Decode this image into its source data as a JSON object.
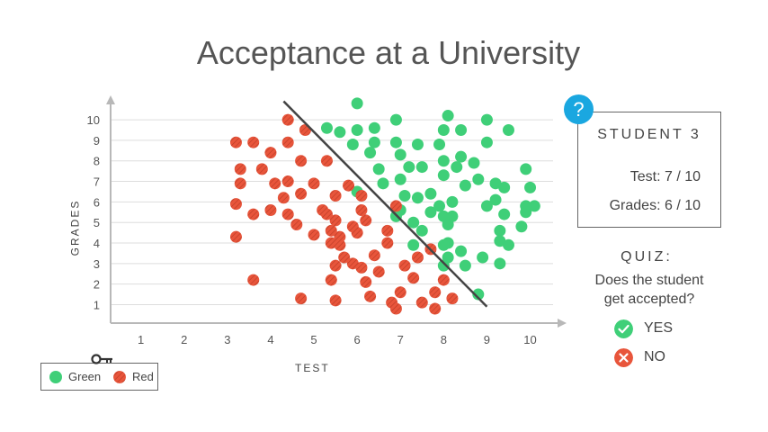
{
  "page": {
    "title": "Acceptance at a University"
  },
  "legend": {
    "green_label": "Green",
    "red_label": "Red",
    "key_icon": "key-icon"
  },
  "card": {
    "badge": "?",
    "heading": "STUDENT 3",
    "test_line": "Test: 7 / 10",
    "grades_line": "Grades: 6 / 10"
  },
  "quiz": {
    "title": "QUIZ:",
    "question_line1": "Does the student",
    "question_line2": "get accepted?",
    "yes_label": "YES",
    "no_label": "NO",
    "yes_icon": "check-icon",
    "no_icon": "x-icon"
  },
  "colors": {
    "green": "#3fcf78",
    "red": "#e8553b",
    "boundary": "#444444",
    "grid": "#dddddd",
    "axis": "#b8b8b8",
    "badge": "#1aa7e0"
  },
  "chart_data": {
    "type": "scatter",
    "title": "Acceptance at a University",
    "xlabel": "TEST",
    "ylabel": "GRADES",
    "xlim": [
      0.3,
      10.8
    ],
    "ylim": [
      0.1,
      11.1
    ],
    "xticks": [
      1,
      2,
      3,
      4,
      5,
      6,
      7,
      8,
      9,
      10
    ],
    "yticks": [
      1,
      2,
      3,
      4,
      5,
      6,
      7,
      8,
      9,
      10
    ],
    "grid": "horizontal",
    "legend": "bottom-left",
    "boundary_line": {
      "x": [
        4.3,
        9.0
      ],
      "y": [
        10.9,
        0.9
      ]
    },
    "series": [
      {
        "name": "Green",
        "points": [
          [
            6.0,
            10.8
          ],
          [
            5.3,
            9.6
          ],
          [
            5.6,
            9.4
          ],
          [
            5.9,
            8.8
          ],
          [
            6.0,
            9.5
          ],
          [
            6.4,
            9.6
          ],
          [
            6.4,
            8.9
          ],
          [
            6.3,
            8.4
          ],
          [
            6.9,
            10.0
          ],
          [
            6.9,
            8.9
          ],
          [
            7.0,
            8.3
          ],
          [
            7.4,
            8.8
          ],
          [
            6.5,
            7.6
          ],
          [
            6.6,
            6.9
          ],
          [
            7.2,
            7.7
          ],
          [
            7.5,
            7.7
          ],
          [
            7.0,
            7.1
          ],
          [
            8.1,
            10.2
          ],
          [
            8.0,
            9.5
          ],
          [
            7.9,
            8.8
          ],
          [
            8.4,
            9.5
          ],
          [
            8.4,
            8.2
          ],
          [
            8.3,
            7.7
          ],
          [
            8.0,
            8.0
          ],
          [
            8.0,
            7.3
          ],
          [
            8.7,
            7.9
          ],
          [
            9.0,
            10.0
          ],
          [
            9.0,
            8.9
          ],
          [
            9.5,
            9.5
          ],
          [
            8.5,
            6.8
          ],
          [
            8.8,
            7.1
          ],
          [
            9.2,
            6.9
          ],
          [
            9.4,
            6.7
          ],
          [
            9.9,
            7.6
          ],
          [
            10.0,
            6.7
          ],
          [
            9.9,
            5.8
          ],
          [
            10.1,
            5.8
          ],
          [
            9.2,
            6.1
          ],
          [
            9.0,
            5.8
          ],
          [
            9.4,
            5.4
          ],
          [
            9.9,
            5.5
          ],
          [
            9.8,
            4.8
          ],
          [
            9.3,
            4.6
          ],
          [
            9.3,
            4.1
          ],
          [
            9.5,
            3.9
          ],
          [
            9.3,
            3.0
          ],
          [
            8.9,
            3.3
          ],
          [
            8.4,
            3.6
          ],
          [
            8.5,
            2.9
          ],
          [
            8.8,
            1.5
          ],
          [
            7.1,
            6.3
          ],
          [
            7.4,
            6.2
          ],
          [
            7.7,
            6.4
          ],
          [
            7.7,
            5.5
          ],
          [
            8.2,
            5.3
          ],
          [
            7.9,
            5.8
          ],
          [
            8.2,
            6.0
          ],
          [
            7.0,
            5.6
          ],
          [
            7.3,
            5.0
          ],
          [
            7.5,
            4.6
          ],
          [
            8.0,
            5.3
          ],
          [
            8.1,
            4.9
          ],
          [
            8.1,
            4.0
          ],
          [
            8.0,
            3.9
          ],
          [
            6.0,
            6.5
          ],
          [
            6.9,
            5.3
          ],
          [
            7.3,
            3.9
          ],
          [
            8.1,
            3.3
          ],
          [
            8.0,
            2.9
          ]
        ]
      },
      {
        "name": "Red",
        "points": [
          [
            3.2,
            8.9
          ],
          [
            3.6,
            8.9
          ],
          [
            3.3,
            7.6
          ],
          [
            3.3,
            6.9
          ],
          [
            4.0,
            8.4
          ],
          [
            4.4,
            10.0
          ],
          [
            4.8,
            9.5
          ],
          [
            4.4,
            8.9
          ],
          [
            4.7,
            8.0
          ],
          [
            5.3,
            8.0
          ],
          [
            3.8,
            7.6
          ],
          [
            4.1,
            6.9
          ],
          [
            4.4,
            7.0
          ],
          [
            4.7,
            6.4
          ],
          [
            5.0,
            6.9
          ],
          [
            4.3,
            6.2
          ],
          [
            3.2,
            5.9
          ],
          [
            3.6,
            5.4
          ],
          [
            4.0,
            5.6
          ],
          [
            4.4,
            5.4
          ],
          [
            4.6,
            4.9
          ],
          [
            5.0,
            4.4
          ],
          [
            3.2,
            4.3
          ],
          [
            5.2,
            5.6
          ],
          [
            5.5,
            6.3
          ],
          [
            5.8,
            6.8
          ],
          [
            6.1,
            6.3
          ],
          [
            5.3,
            5.4
          ],
          [
            5.5,
            5.1
          ],
          [
            5.4,
            4.6
          ],
          [
            5.4,
            4.0
          ],
          [
            5.6,
            4.3
          ],
          [
            5.6,
            3.9
          ],
          [
            5.9,
            4.8
          ],
          [
            6.0,
            4.5
          ],
          [
            6.1,
            5.6
          ],
          [
            6.2,
            5.1
          ],
          [
            6.9,
            5.8
          ],
          [
            6.7,
            4.6
          ],
          [
            6.7,
            4.0
          ],
          [
            6.4,
            3.4
          ],
          [
            6.5,
            2.6
          ],
          [
            5.7,
            3.3
          ],
          [
            5.5,
            2.9
          ],
          [
            5.9,
            3.0
          ],
          [
            6.1,
            2.8
          ],
          [
            7.1,
            2.9
          ],
          [
            7.4,
            3.3
          ],
          [
            7.7,
            3.7
          ],
          [
            7.3,
            2.3
          ],
          [
            7.8,
            1.6
          ],
          [
            8.0,
            2.2
          ],
          [
            8.2,
            1.3
          ],
          [
            7.5,
            1.1
          ],
          [
            7.0,
            1.6
          ],
          [
            6.8,
            1.1
          ],
          [
            6.9,
            0.8
          ],
          [
            7.8,
            0.8
          ],
          [
            5.5,
            1.2
          ],
          [
            6.3,
            1.4
          ],
          [
            6.2,
            2.1
          ],
          [
            5.4,
            2.2
          ],
          [
            4.7,
            1.3
          ],
          [
            3.6,
            2.2
          ]
        ]
      }
    ]
  }
}
